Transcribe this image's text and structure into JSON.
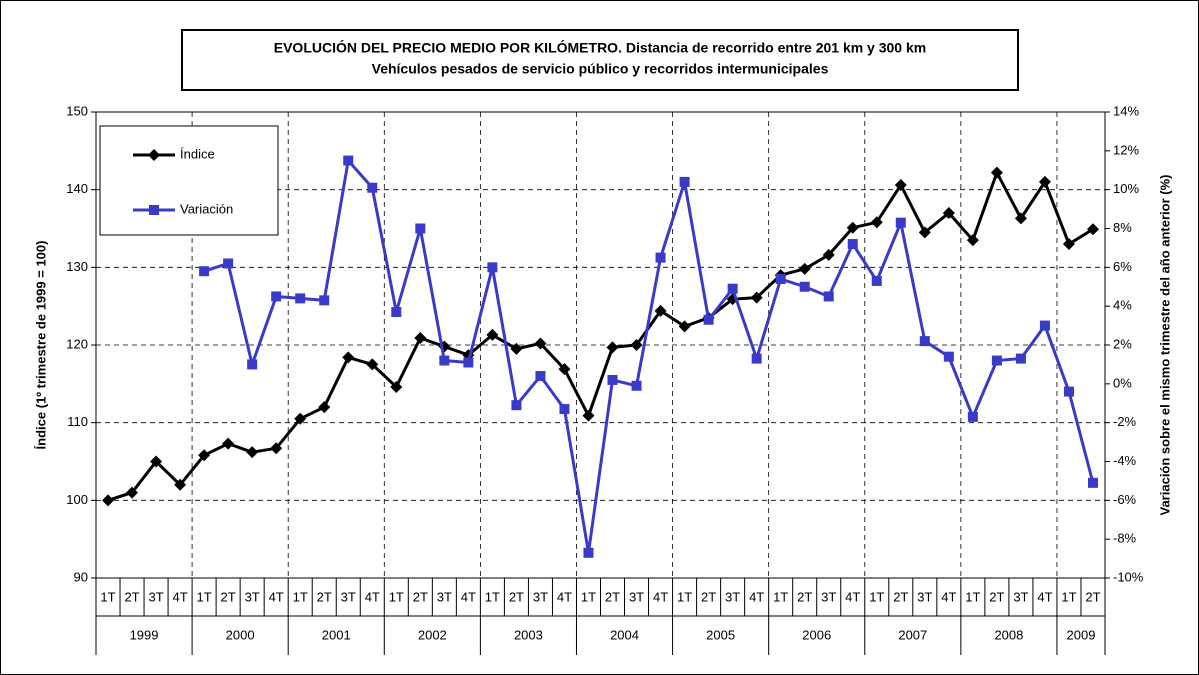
{
  "chart_data": {
    "type": "line",
    "title": "EVOLUCIÓN DEL PRECIO MEDIO POR KILÓMETRO. Distancia de recorrido entre 201 km y 300 km",
    "subtitle": "Vehículos pesados de servicio público y recorridos intermunicipales",
    "y_label": "Índice (1º trimestre de 1999 = 100)",
    "y2_label": "Variación sobre el mismo trimestre del año anterior (%)",
    "categories": [
      {
        "year": "1999",
        "quarter": "1T"
      },
      {
        "year": "1999",
        "quarter": "2T"
      },
      {
        "year": "1999",
        "quarter": "3T"
      },
      {
        "year": "1999",
        "quarter": "4T"
      },
      {
        "year": "2000",
        "quarter": "1T"
      },
      {
        "year": "2000",
        "quarter": "2T"
      },
      {
        "year": "2000",
        "quarter": "3T"
      },
      {
        "year": "2000",
        "quarter": "4T"
      },
      {
        "year": "2001",
        "quarter": "1T"
      },
      {
        "year": "2001",
        "quarter": "2T"
      },
      {
        "year": "2001",
        "quarter": "3T"
      },
      {
        "year": "2001",
        "quarter": "4T"
      },
      {
        "year": "2002",
        "quarter": "1T"
      },
      {
        "year": "2002",
        "quarter": "2T"
      },
      {
        "year": "2002",
        "quarter": "3T"
      },
      {
        "year": "2002",
        "quarter": "4T"
      },
      {
        "year": "2003",
        "quarter": "1T"
      },
      {
        "year": "2003",
        "quarter": "2T"
      },
      {
        "year": "2003",
        "quarter": "3T"
      },
      {
        "year": "2003",
        "quarter": "4T"
      },
      {
        "year": "2004",
        "quarter": "1T"
      },
      {
        "year": "2004",
        "quarter": "2T"
      },
      {
        "year": "2004",
        "quarter": "3T"
      },
      {
        "year": "2004",
        "quarter": "4T"
      },
      {
        "year": "2005",
        "quarter": "1T"
      },
      {
        "year": "2005",
        "quarter": "2T"
      },
      {
        "year": "2005",
        "quarter": "3T"
      },
      {
        "year": "2005",
        "quarter": "4T"
      },
      {
        "year": "2006",
        "quarter": "1T"
      },
      {
        "year": "2006",
        "quarter": "2T"
      },
      {
        "year": "2006",
        "quarter": "3T"
      },
      {
        "year": "2006",
        "quarter": "4T"
      },
      {
        "year": "2007",
        "quarter": "1T"
      },
      {
        "year": "2007",
        "quarter": "2T"
      },
      {
        "year": "2007",
        "quarter": "3T"
      },
      {
        "year": "2007",
        "quarter": "4T"
      },
      {
        "year": "2008",
        "quarter": "1T"
      },
      {
        "year": "2008",
        "quarter": "2T"
      },
      {
        "year": "2008",
        "quarter": "3T"
      },
      {
        "year": "2008",
        "quarter": "4T"
      },
      {
        "year": "2009",
        "quarter": "1T"
      },
      {
        "year": "2009",
        "quarter": "2T"
      }
    ],
    "series": [
      {
        "name": "Índice",
        "color": "#000000",
        "marker": "diamond",
        "values": [
          100,
          101,
          105,
          102,
          105.8,
          107.3,
          106.2,
          106.7,
          110.5,
          112,
          118.4,
          117.5,
          114.6,
          120.9,
          119.8,
          118.7,
          121.3,
          119.5,
          120.2,
          116.9,
          110.9,
          119.7,
          120,
          124.4,
          122.4,
          123.5,
          125.9,
          126.1,
          129,
          129.8,
          131.6,
          135.1,
          135.8,
          140.6,
          134.5,
          137,
          133.5,
          142.2,
          136.3,
          141,
          133,
          134.9
        ]
      },
      {
        "name": "Variación",
        "color": "#3a3ac8",
        "marker": "square",
        "axis": "y2",
        "values": [
          null,
          null,
          null,
          null,
          5.8,
          6.2,
          1.0,
          4.5,
          4.4,
          4.3,
          11.5,
          10.1,
          3.7,
          8.0,
          1.2,
          1.1,
          6.0,
          -1.1,
          0.4,
          -1.3,
          -8.7,
          0.2,
          -0.1,
          6.5,
          10.4,
          3.3,
          4.9,
          1.3,
          5.4,
          5.0,
          4.5,
          7.2,
          5.3,
          8.3,
          2.2,
          1.4,
          -1.7,
          1.2,
          1.3,
          3.0,
          -0.4,
          -5.1
        ]
      }
    ],
    "ylim": [
      90,
      150
    ],
    "yticks": [
      90,
      100,
      110,
      120,
      130,
      140,
      150
    ],
    "y2lim": [
      -10,
      14
    ],
    "y2ticks": [
      {
        "value": -10,
        "label": "-10%"
      },
      {
        "value": -8,
        "label": "-8%"
      },
      {
        "value": -6,
        "label": "-6%"
      },
      {
        "value": -4,
        "label": "-4%"
      },
      {
        "value": -2,
        "label": "-2%"
      },
      {
        "value": 0,
        "label": "0%"
      },
      {
        "value": 2,
        "label": "2%"
      },
      {
        "value": 4,
        "label": "4%"
      },
      {
        "value": 6,
        "label": "6%"
      },
      {
        "value": 8,
        "label": "8%"
      },
      {
        "value": 10,
        "label": "10%"
      },
      {
        "value": 12,
        "label": "12%"
      },
      {
        "value": 14,
        "label": "14%"
      }
    ],
    "grid": true,
    "legend": "top-left"
  }
}
